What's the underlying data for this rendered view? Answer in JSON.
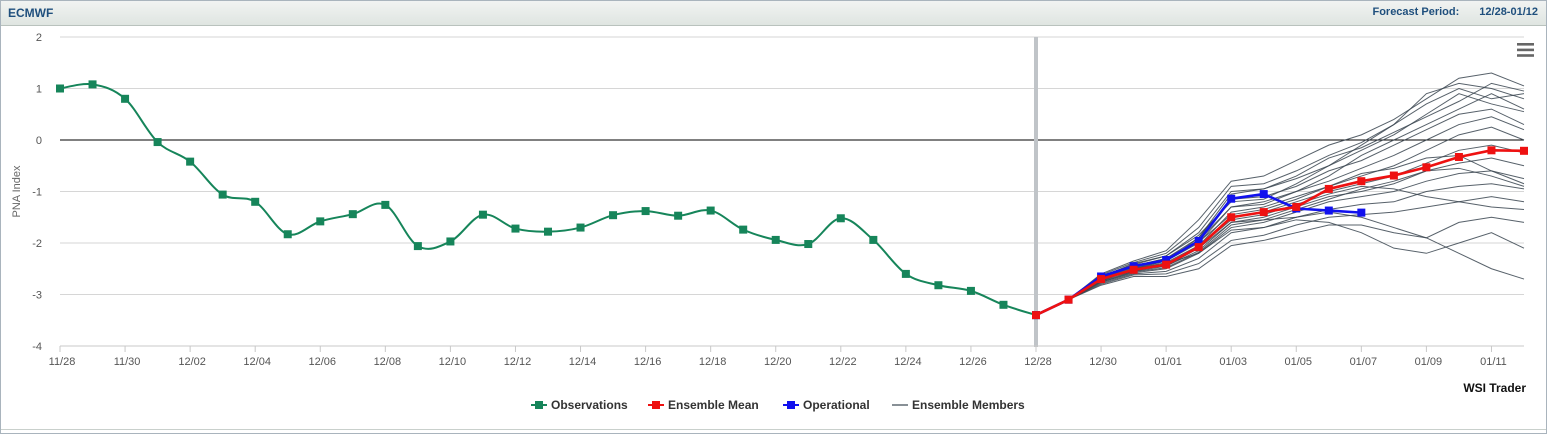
{
  "header": {
    "source": "ECMWF",
    "period_label": "Forecast Period:",
    "period_value": "12/28-01/12"
  },
  "credit": "WSI Trader",
  "menu_icon": "hamburger-menu-icon",
  "chart_data": {
    "type": "line",
    "ylabel": "PNA Index",
    "ylim": [
      -4,
      2
    ],
    "yticks": [
      2,
      1,
      0,
      -1,
      -2,
      -3,
      -4
    ],
    "x_start": "11/28",
    "x_end": "01/12",
    "xticks": [
      "11/28",
      "11/30",
      "12/02",
      "12/04",
      "12/06",
      "12/08",
      "12/10",
      "12/12",
      "12/14",
      "12/16",
      "12/18",
      "12/20",
      "12/22",
      "12/24",
      "12/26",
      "12/28",
      "12/30",
      "01/01",
      "01/03",
      "01/05",
      "01/07",
      "01/09",
      "01/11"
    ],
    "forecast_start": "12/28",
    "grid": true,
    "legend_position": "bottom-center",
    "colors": {
      "observations": "#16855a",
      "ensemble_mean": "#ee1111",
      "operational": "#1111ee",
      "ensemble_members": "#3a4550",
      "zero_line": "#000000",
      "forecast_divider": "#c0c4c8"
    },
    "series": [
      {
        "name": "Observations",
        "color": "#16855a",
        "x": [
          "11/28",
          "11/29",
          "11/30",
          "12/01",
          "12/02",
          "12/03",
          "12/04",
          "12/05",
          "12/06",
          "12/07",
          "12/08",
          "12/09",
          "12/10",
          "12/11",
          "12/12",
          "12/13",
          "12/14",
          "12/15",
          "12/16",
          "12/17",
          "12/18",
          "12/19",
          "12/20",
          "12/21",
          "12/22",
          "12/23",
          "12/24",
          "12/25",
          "12/26",
          "12/27",
          "12/28"
        ],
        "values": [
          1.0,
          1.08,
          0.8,
          -0.04,
          -0.42,
          -1.06,
          -1.2,
          -1.83,
          -1.58,
          -1.44,
          -1.26,
          -2.06,
          -1.97,
          -1.45,
          -1.72,
          -1.78,
          -1.7,
          -1.46,
          -1.38,
          -1.47,
          -1.37,
          -1.74,
          -1.94,
          -2.02,
          -1.52,
          -1.94,
          -2.6,
          -2.82,
          -2.93,
          -3.2,
          -3.4
        ]
      },
      {
        "name": "Ensemble Mean",
        "color": "#ee1111",
        "x": [
          "12/28",
          "12/29",
          "12/30",
          "12/31",
          "01/01",
          "01/02",
          "01/03",
          "01/04",
          "01/05",
          "01/06",
          "01/07",
          "01/08",
          "01/09",
          "01/10",
          "01/11",
          "01/12"
        ],
        "values": [
          -3.4,
          -3.1,
          -2.7,
          -2.52,
          -2.42,
          -2.08,
          -1.5,
          -1.4,
          -1.3,
          -0.95,
          -0.8,
          -0.69,
          -0.53,
          -0.33,
          -0.2,
          -0.21
        ]
      },
      {
        "name": "Operational",
        "color": "#1111ee",
        "x": [
          "12/28",
          "12/29",
          "12/30",
          "12/31",
          "01/01",
          "01/02",
          "01/03",
          "01/04",
          "01/05",
          "01/06",
          "01/07"
        ],
        "values": [
          -3.4,
          -3.1,
          -2.65,
          -2.45,
          -2.33,
          -1.96,
          -1.14,
          -1.05,
          -1.33,
          -1.37,
          -1.41
        ]
      },
      {
        "name": "Ensemble Members",
        "color": "#3a4550",
        "x": [
          "12/28",
          "12/29",
          "12/30",
          "12/31",
          "01/01",
          "01/02",
          "01/03",
          "01/04",
          "01/05",
          "01/06",
          "01/07",
          "01/08",
          "01/09",
          "01/10",
          "01/11",
          "01/12"
        ],
        "members": [
          [
            -3.4,
            -3.1,
            -2.6,
            -2.35,
            -2.15,
            -1.55,
            -0.8,
            -0.7,
            -0.4,
            -0.1,
            0.1,
            0.4,
            0.8,
            1.2,
            1.3,
            1.05
          ],
          [
            -3.4,
            -3.1,
            -2.62,
            -2.38,
            -2.2,
            -1.7,
            -0.9,
            -0.85,
            -0.6,
            -0.3,
            -0.05,
            0.3,
            0.9,
            1.1,
            1.0,
            0.8
          ],
          [
            -3.4,
            -3.1,
            -2.64,
            -2.42,
            -2.25,
            -1.8,
            -1.0,
            -0.95,
            -0.75,
            -0.5,
            -0.2,
            0.1,
            0.5,
            0.9,
            0.7,
            0.55
          ],
          [
            -3.4,
            -3.1,
            -2.66,
            -2.45,
            -2.3,
            -1.9,
            -1.15,
            -1.1,
            -0.9,
            -0.6,
            -0.4,
            -0.1,
            0.2,
            0.5,
            0.6,
            0.3
          ],
          [
            -3.4,
            -3.1,
            -2.68,
            -2.48,
            -2.35,
            -2.0,
            -1.3,
            -1.2,
            -1.0,
            -0.8,
            -0.55,
            -0.3,
            0.0,
            0.3,
            0.45,
            0.2
          ],
          [
            -3.4,
            -3.1,
            -2.7,
            -2.5,
            -2.38,
            -2.05,
            -1.4,
            -1.3,
            -1.1,
            -0.9,
            -0.7,
            -0.5,
            -0.2,
            0.1,
            0.25,
            0.0
          ],
          [
            -3.4,
            -3.1,
            -2.72,
            -2.52,
            -2.42,
            -2.1,
            -1.5,
            -1.4,
            -1.2,
            -1.0,
            -0.85,
            -0.7,
            -0.45,
            -0.2,
            -0.1,
            -0.25
          ],
          [
            -3.4,
            -3.1,
            -2.74,
            -2.55,
            -2.45,
            -2.15,
            -1.6,
            -1.5,
            -1.3,
            -1.1,
            -1.0,
            -0.85,
            -0.6,
            -0.45,
            -0.35,
            -0.5
          ],
          [
            -3.4,
            -3.1,
            -2.76,
            -2.58,
            -2.5,
            -2.2,
            -1.7,
            -1.6,
            -1.4,
            -1.2,
            -1.1,
            -1.0,
            -0.8,
            -0.65,
            -0.6,
            -0.75
          ],
          [
            -3.4,
            -3.1,
            -2.78,
            -2.6,
            -2.55,
            -2.3,
            -1.8,
            -1.7,
            -1.5,
            -1.35,
            -1.25,
            -1.2,
            -1.0,
            -0.9,
            -0.85,
            -0.95
          ],
          [
            -3.4,
            -3.1,
            -2.8,
            -2.62,
            -2.6,
            -2.4,
            -1.95,
            -1.85,
            -1.65,
            -1.5,
            -1.45,
            -1.4,
            -1.3,
            -1.2,
            -1.1,
            -1.2
          ],
          [
            -3.4,
            -3.1,
            -2.82,
            -2.65,
            -2.65,
            -2.5,
            -2.05,
            -1.95,
            -1.8,
            -1.65,
            -1.65,
            -1.8,
            -1.9,
            -1.6,
            -1.5,
            -1.6
          ],
          [
            -3.4,
            -3.1,
            -2.7,
            -2.55,
            -2.4,
            -2.2,
            -1.75,
            -1.7,
            -1.55,
            -1.6,
            -1.8,
            -2.1,
            -2.2,
            -2.0,
            -1.8,
            -2.1
          ],
          [
            -3.4,
            -3.1,
            -2.72,
            -2.5,
            -2.45,
            -2.1,
            -1.6,
            -1.55,
            -1.5,
            -1.4,
            -1.5,
            -1.7,
            -1.9,
            -2.2,
            -2.5,
            -2.7
          ],
          [
            -3.4,
            -3.1,
            -2.66,
            -2.4,
            -2.25,
            -1.85,
            -1.2,
            -1.15,
            -0.85,
            -0.5,
            -0.1,
            0.3,
            0.7,
            1.0,
            0.8,
            0.9
          ],
          [
            -3.4,
            -3.1,
            -2.64,
            -2.44,
            -2.3,
            -1.95,
            -1.3,
            -1.25,
            -1.0,
            -0.7,
            -0.3,
            0.0,
            0.3,
            0.6,
            0.9,
            0.6
          ],
          [
            -3.4,
            -3.1,
            -2.68,
            -2.46,
            -2.32,
            -1.98,
            -1.45,
            -1.35,
            -1.15,
            -0.9,
            -0.65,
            -0.55,
            -0.35,
            -0.3,
            -0.6,
            -0.85
          ],
          [
            -3.4,
            -3.1,
            -2.74,
            -2.5,
            -2.4,
            -2.08,
            -1.55,
            -1.45,
            -1.25,
            -1.05,
            -0.9,
            -0.95,
            -1.1,
            -1.2,
            -1.3,
            -1.35
          ],
          [
            -3.4,
            -3.1,
            -2.76,
            -2.56,
            -2.48,
            -2.18,
            -1.65,
            -1.55,
            -1.35,
            -1.15,
            -0.95,
            -0.8,
            -0.6,
            -0.55,
            -0.7,
            -0.9
          ],
          [
            -3.4,
            -3.1,
            -2.7,
            -2.5,
            -2.35,
            -1.9,
            -1.05,
            -0.95,
            -0.7,
            -0.35,
            -0.15,
            0.15,
            0.45,
            0.75,
            1.1,
            0.95
          ]
        ]
      }
    ]
  },
  "legend": [
    {
      "label": "Observations",
      "color": "#16855a",
      "marker": "square"
    },
    {
      "label": "Ensemble Mean",
      "color": "#ee1111",
      "marker": "square"
    },
    {
      "label": "Operational",
      "color": "#1111ee",
      "marker": "square"
    },
    {
      "label": "Ensemble Members",
      "color": "#3a4550",
      "marker": "none"
    }
  ]
}
